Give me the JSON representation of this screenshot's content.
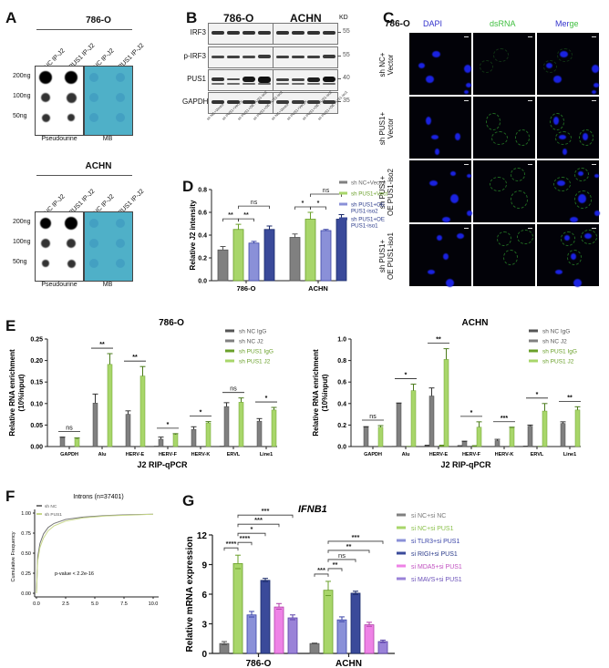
{
  "panels": {
    "A": {
      "label": "A",
      "blocks": [
        {
          "cell_line": "786-O",
          "lanes": [
            "sh NC IP-J2",
            "sh PUS1 IP-J2",
            "sh NC IP-J2",
            "sh PUS1 IP-J2"
          ],
          "rows": [
            "200ng",
            "100ng",
            "50ng"
          ],
          "left_stain": "Pseudourine",
          "right_stain": "MB"
        },
        {
          "cell_line": "ACHN",
          "lanes": [
            "sh NC IP-J2",
            "sh PUS1 IP-J2",
            "sh NC IP-J2",
            "sh PUS1 IP-J2"
          ],
          "rows": [
            "200ng",
            "100ng",
            "50ng"
          ],
          "left_stain": "Pseudourine",
          "right_stain": "MB"
        }
      ]
    },
    "B": {
      "label": "B",
      "cell_lines": [
        "786-O",
        "ACHN"
      ],
      "kd_label": "KD",
      "proteins": [
        "IRF3",
        "p-IRF3",
        "PUS1",
        "GAPDH"
      ],
      "markers": [
        "55",
        "55",
        "40",
        "35"
      ],
      "lanes_786O": [
        "sh NC+Vector",
        "sh PUS1+Vector",
        "sh PUS1+OE PUS1-iso2",
        "sh PUS1+OE PUS1-iso1"
      ],
      "lanes_ACHN": [
        "sh NC+Vector",
        "sh PUS1+Vector",
        "sh PUS1+OE PUS1-iso2",
        "sh PUS1+OE PUS1-iso1"
      ]
    },
    "C": {
      "label": "C",
      "cell_line": "786-O",
      "channels": [
        "DAPI",
        "dsRNA",
        "Merge"
      ],
      "merge_parts": [
        "Mer",
        "ge"
      ],
      "rows": [
        {
          "line1": "sh NC+",
          "line2": "Vector"
        },
        {
          "line1": "sh PUS1+",
          "line2": "Vector"
        },
        {
          "line1": "sh PUS1+",
          "line2": "OE PUS1-iso2"
        },
        {
          "line1": "sh PUS1+",
          "line2": "OE PUS1-iso1"
        }
      ]
    },
    "D": {
      "label": "D"
    },
    "E": {
      "label": "E"
    },
    "F": {
      "label": "F"
    },
    "G": {
      "label": "G"
    }
  },
  "colors": {
    "gray": "#808080",
    "green": "#a8d66a",
    "lightblue": "#8a90d8",
    "darkblue": "#3a4a9a",
    "pink": "#ee82e6",
    "purple": "#9a82d8",
    "dapi": "#3333cc",
    "dsrna": "#3fbf3f"
  },
  "chart_data": [
    {
      "id": "D",
      "type": "bar",
      "title": "",
      "xlabel": "",
      "ylabel": "Relative J2 intensity",
      "ylim": [
        0,
        0.8
      ],
      "yticks": [
        "0.0",
        "0.2",
        "0.4",
        "0.6",
        "0.8"
      ],
      "categories": [
        "786-O",
        "ACHN"
      ],
      "series": [
        {
          "name": "sh NC+Vector",
          "values": [
            0.27,
            0.38
          ],
          "errors": [
            0.03,
            0.03
          ]
        },
        {
          "name": "sh PUS1+Vector",
          "values": [
            0.45,
            0.54
          ],
          "errors": [
            0.045,
            0.06
          ]
        },
        {
          "name": "sh PUS1+OE PUS1-iso2",
          "values": [
            0.33,
            0.44
          ],
          "errors": [
            0.015,
            0.01
          ]
        },
        {
          "name": "sh PUS1+OE PUS1-iso1",
          "values": [
            0.45,
            0.54
          ],
          "errors": [
            0.03,
            0.04
          ]
        }
      ],
      "legend": [
        "sh NC+Vector",
        "sh PUS1+Vector",
        "sh PUS1+OE PUS1-iso2",
        "sh PUS1+OE PUS1-iso1"
      ],
      "legend_lines": [
        [
          "sh NC+Vector"
        ],
        [
          "sh PUS1+Vector"
        ],
        [
          "sh PUS1+OE",
          "PUS1-iso2"
        ],
        [
          "sh PUS1+OE",
          "PUS1-iso1"
        ]
      ],
      "significance": [
        {
          "group": "786-O",
          "from": 0,
          "to": 1,
          "label": "**"
        },
        {
          "group": "786-O",
          "from": 1,
          "to": 2,
          "label": "**"
        },
        {
          "group": "786-O",
          "from": 1,
          "to": 3,
          "label": "ns"
        },
        {
          "group": "ACHN",
          "from": 0,
          "to": 1,
          "label": "*"
        },
        {
          "group": "ACHN",
          "from": 1,
          "to": 2,
          "label": "*"
        },
        {
          "group": "ACHN",
          "from": 1,
          "to": 3,
          "label": "ns"
        }
      ]
    },
    {
      "id": "E-786O",
      "type": "bar",
      "title": "786-O",
      "xlabel": "J2 RIP-qPCR",
      "ylabel": "Relative RNA enrichment (10%input)",
      "ylabel_lines": [
        "Relative RNA enrichment",
        "(10%input)"
      ],
      "ylim": [
        0,
        0.25
      ],
      "yticks": [
        "0.00",
        "0.05",
        "0.10",
        "0.15",
        "0.20",
        "0.25"
      ],
      "categories": [
        "GAPDH",
        "Alu",
        "HERV-E",
        "HERV-F",
        "HERV-K",
        "ERVL",
        "Line1"
      ],
      "series": [
        {
          "name": "sh NC IgG",
          "values": [
            0.0,
            0.0,
            0.0,
            0.001,
            0.0,
            0.001,
            0.0
          ]
        },
        {
          "name": "sh NC J2",
          "values": [
            0.021,
            0.101,
            0.075,
            0.017,
            0.04,
            0.093,
            0.059
          ]
        },
        {
          "name": "sh PUS1 IgG",
          "values": [
            0.0,
            0.0,
            0.0,
            0.0,
            0.0,
            0.0,
            0.0
          ]
        },
        {
          "name": "sh PUS1 J2",
          "values": [
            0.018,
            0.191,
            0.164,
            0.028,
            0.055,
            0.103,
            0.085
          ]
        }
      ],
      "errors_nc_j2": [
        0.001,
        0.021,
        0.008,
        0.005,
        0.006,
        0.009,
        0.006
      ],
      "errors_pus1_j2": [
        0.002,
        0.025,
        0.022,
        0.002,
        0.003,
        0.01,
        0.006
      ],
      "significance": [
        "ns",
        "**",
        "**",
        "*",
        "*",
        "ns",
        "*"
      ],
      "legend": [
        "sh NC IgG",
        "sh NC J2",
        "sh PUS1 IgG",
        "sh PUS1 J2"
      ]
    },
    {
      "id": "E-ACHN",
      "type": "bar",
      "title": "ACHN",
      "xlabel": "J2 RIP-qPCR",
      "ylabel": "Relative RNA enrichment (10%input)",
      "ylabel_lines": [
        "Relative RNA enrichment",
        "(10%input)"
      ],
      "ylim": [
        0,
        1.0
      ],
      "yticks": [
        "0.0",
        "0.2",
        "0.4",
        "0.6",
        "0.8",
        "1.0"
      ],
      "categories": [
        "GAPDH",
        "Alu",
        "HERV-E",
        "HERV-F",
        "HERV-K",
        "ERVL",
        "Line1"
      ],
      "series": [
        {
          "name": "sh NC IgG",
          "values": [
            0.0,
            0.003,
            0.015,
            0.01,
            0.0,
            0.005,
            0.0
          ]
        },
        {
          "name": "sh NC J2",
          "values": [
            0.18,
            0.4,
            0.47,
            0.045,
            0.055,
            0.19,
            0.215
          ]
        },
        {
          "name": "sh PUS1 IgG",
          "values": [
            0.0,
            0.003,
            0.015,
            0.01,
            0.0,
            0.003,
            0.0
          ]
        },
        {
          "name": "sh PUS1 J2",
          "values": [
            0.18,
            0.52,
            0.81,
            0.18,
            0.175,
            0.33,
            0.34
          ]
        }
      ],
      "errors_nc_j2": [
        0.005,
        0.005,
        0.075,
        0.005,
        0.012,
        0.01,
        0.015
      ],
      "errors_pus1_j2": [
        0.015,
        0.06,
        0.1,
        0.05,
        0.005,
        0.07,
        0.03
      ],
      "significance": [
        "ns",
        "*",
        "**",
        "*",
        "***",
        "*",
        "**"
      ],
      "legend": [
        "sh NC IgG",
        "sh NC J2",
        "sh PUS1 IgG",
        "sh PUS1 J2"
      ]
    },
    {
      "id": "F",
      "type": "line",
      "title": "Introns (n=37401)",
      "xlabel": "Intron Retention Score",
      "ylabel": "Cumulative Frequency",
      "xlim": [
        0,
        10
      ],
      "ylim": [
        0,
        1
      ],
      "xticks": [
        "0.0",
        "2.5",
        "5.0",
        "7.5",
        "10.0"
      ],
      "yticks": [
        "0.00",
        "0.25",
        "0.50",
        "0.75",
        "1.00"
      ],
      "series": [
        {
          "name": "sh NC",
          "x": [
            0,
            0.1,
            0.3,
            0.6,
            1.0,
            1.5,
            2.5,
            4,
            6,
            8,
            10
          ],
          "y": [
            0,
            0.45,
            0.62,
            0.74,
            0.82,
            0.87,
            0.92,
            0.95,
            0.97,
            0.98,
            0.985
          ]
        },
        {
          "name": "sh PUS1",
          "x": [
            0,
            0.1,
            0.3,
            0.6,
            1.0,
            1.5,
            2.5,
            4,
            6,
            8,
            10
          ],
          "y": [
            0,
            0.4,
            0.57,
            0.69,
            0.78,
            0.84,
            0.9,
            0.94,
            0.965,
            0.975,
            0.985
          ]
        }
      ],
      "annotation": "p-value < 2.2e-16",
      "legend": [
        "sh NC",
        "sh PUS1"
      ]
    },
    {
      "id": "G",
      "type": "bar",
      "title": "IFNB1",
      "xlabel": "",
      "ylabel": "Relative mRNA expression",
      "ylim": [
        0,
        12
      ],
      "yticks": [
        "0",
        "3",
        "6",
        "9",
        "12"
      ],
      "categories": [
        "786-O",
        "ACHN"
      ],
      "series": [
        {
          "name": "si NC+si NC",
          "values": [
            1.0,
            1.0
          ],
          "errors": [
            0.2,
            0.05
          ]
        },
        {
          "name": "si NC+si PUS1",
          "values": [
            9.1,
            6.4
          ],
          "errors": [
            0.85,
            0.9
          ]
        },
        {
          "name": "si TLR3+si PUS1",
          "values": [
            3.9,
            3.4
          ],
          "errors": [
            0.35,
            0.3
          ]
        },
        {
          "name": "si RIGI+si PUS1",
          "values": [
            7.4,
            6.1
          ],
          "errors": [
            0.2,
            0.2
          ]
        },
        {
          "name": "si MDA5+si PUS1",
          "values": [
            4.7,
            2.9
          ],
          "errors": [
            0.35,
            0.25
          ]
        },
        {
          "name": "si MAVS+si PUS1",
          "values": [
            3.6,
            1.2
          ],
          "errors": [
            0.3,
            0.15
          ]
        }
      ],
      "legend": [
        "si NC+si NC",
        "si NC+si PUS1",
        "si TLR3+si PUS1",
        "si RIGI+si PUS1",
        "si MDA5+si PUS1",
        "si MAVS+si PUS1"
      ],
      "significance": [
        {
          "group": "786-O",
          "from": 0,
          "to": 1,
          "label": "****"
        },
        {
          "group": "786-O",
          "from": 1,
          "to": 2,
          "label": "****"
        },
        {
          "group": "786-O",
          "from": 1,
          "to": 3,
          "label": "*"
        },
        {
          "group": "786-O",
          "from": 1,
          "to": 4,
          "label": "***"
        },
        {
          "group": "786-O",
          "from": 1,
          "to": 5,
          "label": "***"
        },
        {
          "group": "ACHN",
          "from": 0,
          "to": 1,
          "label": "***"
        },
        {
          "group": "ACHN",
          "from": 1,
          "to": 2,
          "label": "**"
        },
        {
          "group": "ACHN",
          "from": 1,
          "to": 3,
          "label": "ns"
        },
        {
          "group": "ACHN",
          "from": 1,
          "to": 4,
          "label": "**"
        },
        {
          "group": "ACHN",
          "from": 1,
          "to": 5,
          "label": "***"
        }
      ]
    }
  ]
}
